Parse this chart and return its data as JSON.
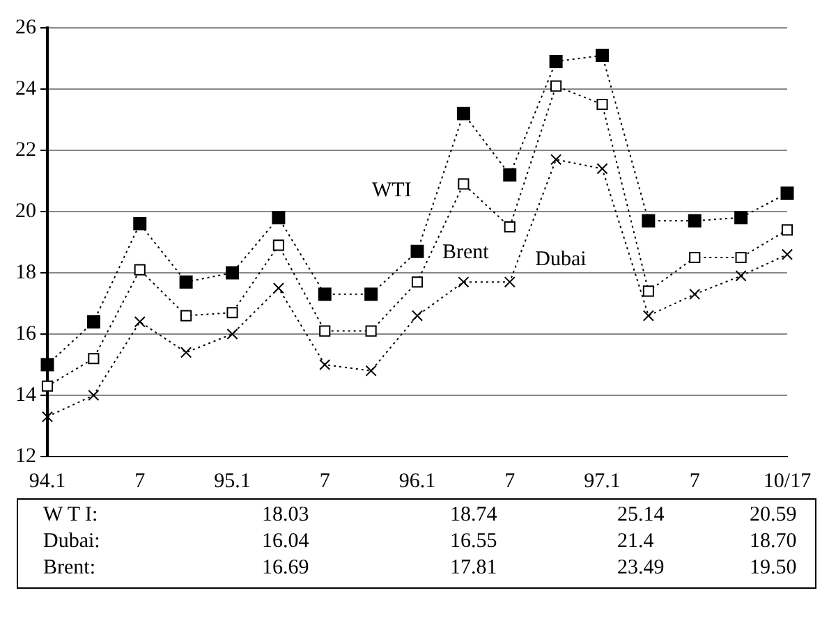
{
  "chart_data": {
    "type": "line",
    "categories": [
      "94.1",
      null,
      "7",
      null,
      "95.1",
      null,
      "7",
      null,
      "96.1",
      null,
      "7",
      null,
      "97.1",
      null,
      "7",
      null,
      "10/17"
    ],
    "series": [
      {
        "name": "WTI",
        "color": "#000000",
        "marker": "square",
        "values": [
          15.0,
          16.4,
          19.6,
          17.7,
          18.0,
          19.8,
          17.3,
          17.3,
          18.7,
          23.2,
          21.2,
          24.9,
          25.1,
          19.7,
          19.7,
          19.8,
          20.6
        ]
      },
      {
        "name": "Brent",
        "color": "#000000",
        "marker": "square",
        "values": [
          14.3,
          15.2,
          18.1,
          16.6,
          16.7,
          18.9,
          16.1,
          16.1,
          17.7,
          20.9,
          19.5,
          24.1,
          23.5,
          17.4,
          18.5,
          18.5,
          19.4
        ]
      },
      {
        "name": "Dubai",
        "color": "#000000",
        "marker": "cross",
        "values": [
          13.3,
          14.0,
          16.4,
          15.4,
          16.0,
          17.5,
          15.0,
          14.8,
          16.6,
          17.7,
          17.7,
          21.7,
          21.4,
          16.6,
          17.3,
          17.9,
          18.6
        ]
      }
    ],
    "ylim": [
      12,
      26
    ],
    "yticks": [
      12,
      14,
      16,
      18,
      20,
      22,
      24,
      26
    ],
    "grid": "y",
    "line_style": "dotted",
    "legend": false,
    "annotations": [
      "W T I:",
      "18.03",
      "18.74",
      "25.14",
      "20.59",
      "Dubai:",
      "16.04",
      "16.55",
      "21.4",
      "18.70",
      "Brent:",
      "16.69",
      "17.81",
      "23.49",
      "19.50"
    ]
  }
}
